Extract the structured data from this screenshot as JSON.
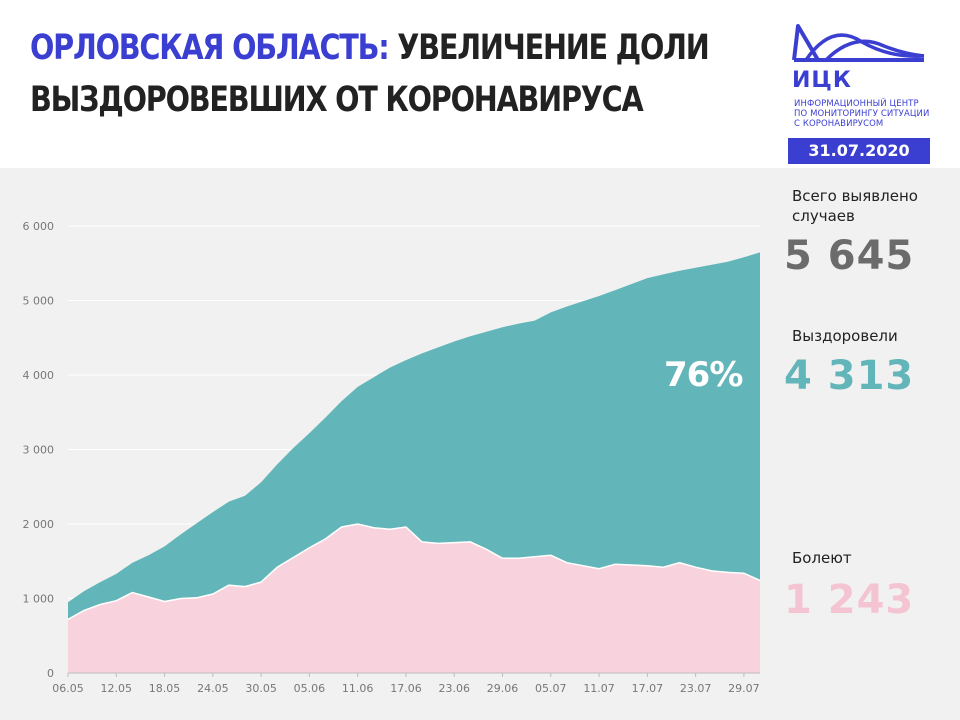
{
  "header": {
    "title_region": "ОРЛОВСКАЯ ОБЛАСТЬ:",
    "title_rest": " УВЕЛИЧЕНИЕ ДОЛИ",
    "title_line2": "ВЫЗДОРОВЕВШИХ ОТ КОРОНАВИРУСА"
  },
  "logo": {
    "abbr": "ИЦК",
    "line1": "ИНФОРМАЦИОННЫЙ ЦЕНТР",
    "line2": "ПО МОНИТОРИНГУ СИТУАЦИИ",
    "line3": "С КОРОНАВИРУСОМ",
    "color": "#3b3fd1"
  },
  "date": "31.07.2020",
  "stats": {
    "total_label": "Всего выявлено случаев",
    "total_value": "5 645",
    "recovered_label": "Выздоровели",
    "recovered_value": "4 313",
    "sick_label": "Болеют",
    "sick_value": "1 243",
    "recovered_share": "76%"
  },
  "colors": {
    "total": "#62b5b8",
    "sick": "#f8d3de",
    "total_text": "#6b6b6b",
    "recovered_text": "#62b5b8",
    "sick_text": "#f4c4d2"
  },
  "chart_data": {
    "type": "area",
    "x": [
      "06.05",
      "08.05",
      "10.05",
      "12.05",
      "14.05",
      "16.05",
      "18.05",
      "20.05",
      "22.05",
      "24.05",
      "26.05",
      "28.05",
      "30.05",
      "01.06",
      "03.06",
      "05.06",
      "07.06",
      "09.06",
      "11.06",
      "13.06",
      "15.06",
      "17.06",
      "19.06",
      "21.06",
      "23.06",
      "25.06",
      "27.06",
      "29.06",
      "01.07",
      "03.07",
      "05.07",
      "07.07",
      "09.07",
      "11.07",
      "13.07",
      "15.07",
      "17.07",
      "19.07",
      "21.07",
      "23.07",
      "25.07",
      "27.07",
      "29.07",
      "31.07"
    ],
    "xtick_labels": [
      "06.05",
      "12.05",
      "18.05",
      "24.05",
      "30.05",
      "05.06",
      "11.06",
      "17.06",
      "23.06",
      "29.06",
      "05.07",
      "11.07",
      "17.07",
      "23.07",
      "29.07"
    ],
    "series": [
      {
        "name": "Всего выявлено случаев",
        "values": [
          950,
          1100,
          1220,
          1330,
          1480,
          1580,
          1700,
          1860,
          2010,
          2160,
          2300,
          2380,
          2560,
          2800,
          3020,
          3220,
          3430,
          3650,
          3840,
          3970,
          4100,
          4200,
          4290,
          4370,
          4450,
          4520,
          4580,
          4640,
          4690,
          4730,
          4840,
          4920,
          4990,
          5060,
          5140,
          5220,
          5300,
          5350,
          5400,
          5440,
          5480,
          5520,
          5580,
          5645
        ]
      },
      {
        "name": "Болеют",
        "values": [
          720,
          840,
          920,
          970,
          1080,
          1020,
          960,
          1000,
          1010,
          1060,
          1180,
          1160,
          1220,
          1420,
          1550,
          1680,
          1800,
          1960,
          2000,
          1950,
          1930,
          1960,
          1760,
          1740,
          1750,
          1760,
          1660,
          1540,
          1540,
          1560,
          1580,
          1480,
          1440,
          1400,
          1460,
          1450,
          1440,
          1420,
          1480,
          1420,
          1370,
          1350,
          1340,
          1243
        ]
      }
    ],
    "ylim": [
      0,
      6000
    ],
    "yticks": [
      0,
      1000,
      2000,
      3000,
      4000,
      5000,
      6000
    ],
    "ytick_labels": [
      "0",
      "1 000",
      "2 000",
      "3 000",
      "4 000",
      "5 000",
      "6 000"
    ],
    "annotation": "76%",
    "grid": "horizontal"
  }
}
